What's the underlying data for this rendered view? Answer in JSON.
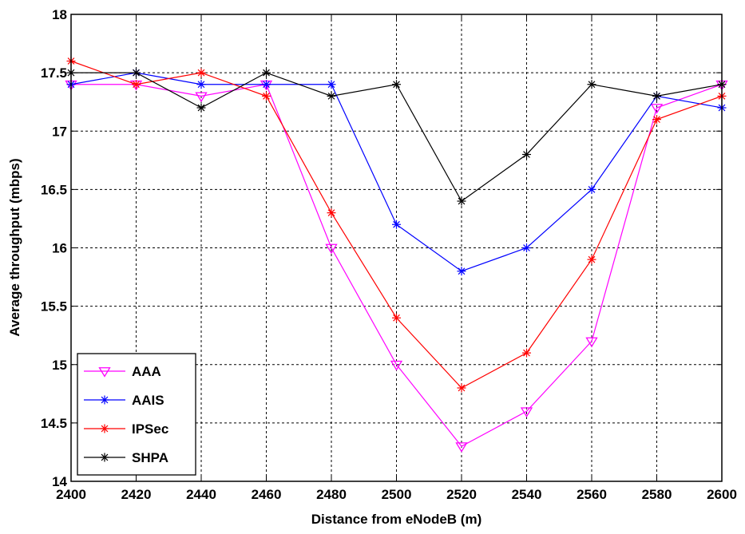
{
  "chart_data": {
    "type": "line",
    "title": "",
    "xlabel": "Distance from eNodeB (m)",
    "ylabel": "Average throughput (mbps)",
    "xlim": [
      2400,
      2600
    ],
    "ylim": [
      14,
      18
    ],
    "x_ticks": [
      "2400",
      "2420",
      "2440",
      "2460",
      "2480",
      "2500",
      "2520",
      "2540",
      "2560",
      "2580",
      "2600"
    ],
    "y_ticks": [
      "14",
      "14.5",
      "15",
      "15.5",
      "16",
      "16.5",
      "17",
      "17.5",
      "18"
    ],
    "grid": true,
    "legend_position": "bottom-left",
    "x": [
      2400,
      2420,
      2440,
      2460,
      2480,
      2500,
      2520,
      2540,
      2560,
      2580,
      2600
    ],
    "series": [
      {
        "name": "AAA",
        "color": "#ff00ff",
        "marker": "triangle-down",
        "values": [
          17.4,
          17.4,
          17.3,
          17.4,
          16.0,
          15.0,
          14.3,
          14.6,
          15.2,
          17.2,
          17.4
        ]
      },
      {
        "name": "AAIS",
        "color": "#0000ff",
        "marker": "star",
        "values": [
          17.4,
          17.5,
          17.4,
          17.4,
          17.4,
          16.2,
          15.8,
          16.0,
          16.5,
          17.3,
          17.2
        ]
      },
      {
        "name": "IPSec",
        "color": "#ff0000",
        "marker": "star",
        "values": [
          17.6,
          17.4,
          17.5,
          17.3,
          16.3,
          15.4,
          14.8,
          15.1,
          15.9,
          17.1,
          17.3
        ]
      },
      {
        "name": "SHPA",
        "color": "#000000",
        "marker": "star",
        "values": [
          17.5,
          17.5,
          17.2,
          17.5,
          17.3,
          17.4,
          16.4,
          16.8,
          17.4,
          17.3,
          17.4
        ]
      }
    ]
  }
}
